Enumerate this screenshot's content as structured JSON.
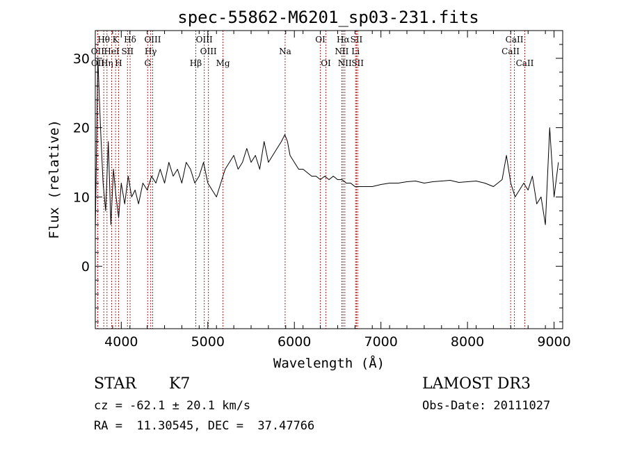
{
  "chart_data": {
    "type": "line",
    "title": "spec-55862-M6201_sp03-231.fits",
    "xlabel": "Wavelength (Å)",
    "ylabel": "Flux (relative)",
    "xlim": [
      3700,
      9100
    ],
    "ylim": [
      -9,
      34
    ],
    "xticks": [
      4000,
      5000,
      6000,
      7000,
      8000,
      9000
    ],
    "yticks": [
      0,
      10,
      20,
      30
    ],
    "series": [
      {
        "name": "spectrum",
        "x": [
          3700,
          3730,
          3760,
          3790,
          3820,
          3850,
          3880,
          3910,
          3940,
          3970,
          4000,
          4040,
          4080,
          4120,
          4160,
          4200,
          4250,
          4300,
          4350,
          4400,
          4450,
          4500,
          4550,
          4600,
          4650,
          4700,
          4750,
          4800,
          4850,
          4900,
          4950,
          5000,
          5050,
          5100,
          5150,
          5200,
          5250,
          5300,
          5350,
          5400,
          5450,
          5500,
          5550,
          5600,
          5650,
          5700,
          5750,
          5800,
          5850,
          5890,
          5920,
          5950,
          6000,
          6050,
          6100,
          6150,
          6200,
          6250,
          6300,
          6350,
          6400,
          6450,
          6500,
          6550,
          6600,
          6650,
          6700,
          6750,
          6800,
          6900,
          7000,
          7100,
          7200,
          7300,
          7400,
          7500,
          7600,
          7700,
          7800,
          7900,
          8000,
          8100,
          8200,
          8300,
          8400,
          8450,
          8500,
          8550,
          8600,
          8650,
          8700,
          8750,
          8800,
          8850,
          8900,
          8950,
          9000,
          9050
        ],
        "y": [
          5,
          30,
          20,
          12,
          8,
          18,
          6,
          14,
          10,
          7,
          12,
          9,
          13,
          10,
          11,
          9,
          12,
          11,
          13,
          12,
          14,
          12,
          15,
          13,
          14,
          12,
          15,
          14,
          12,
          13,
          15,
          12,
          11,
          10,
          12,
          14,
          15,
          16,
          14,
          15,
          17,
          15,
          16,
          14,
          18,
          15,
          16,
          17,
          18,
          19,
          18,
          16,
          15,
          14,
          14,
          13.5,
          13,
          13,
          12.5,
          13,
          12.5,
          13,
          12.5,
          12.5,
          12,
          12,
          11.5,
          11.5,
          11.5,
          11.5,
          11.8,
          12,
          12,
          12.2,
          12.3,
          12,
          12.2,
          12.3,
          12.4,
          12.1,
          12.2,
          12.3,
          12,
          11.5,
          12.5,
          16,
          12,
          10,
          11,
          12,
          11,
          13,
          9,
          10,
          6,
          20,
          10,
          15
        ]
      }
    ],
    "spectral_lines": [
      {
        "label": "Hθ",
        "x": 3798,
        "row": 0
      },
      {
        "label": "K",
        "x": 3934,
        "row": 0
      },
      {
        "label": "Hδ",
        "x": 4102,
        "row": 0
      },
      {
        "label": "OIII",
        "x": 4363,
        "row": 0
      },
      {
        "label": "OIII",
        "x": 4959,
        "row": 0
      },
      {
        "label": "OI",
        "x": 6300,
        "row": 0
      },
      {
        "label": "Hα",
        "x": 6563,
        "row": 0
      },
      {
        "label": "SII",
        "x": 6717,
        "row": 0
      },
      {
        "label": "CaII",
        "x": 8542,
        "row": 0
      },
      {
        "label": "OII",
        "x": 3727,
        "row": 1
      },
      {
        "label": "HeI",
        "x": 3889,
        "row": 1
      },
      {
        "label": "SII",
        "x": 4072,
        "row": 1
      },
      {
        "label": "Hγ",
        "x": 4340,
        "row": 1
      },
      {
        "label": "OIII",
        "x": 5007,
        "row": 1
      },
      {
        "label": "Na",
        "x": 5893,
        "row": 1
      },
      {
        "label": "NII",
        "x": 6548,
        "row": 1
      },
      {
        "label": "Li",
        "x": 6707,
        "row": 1
      },
      {
        "label": "CaII",
        "x": 8498,
        "row": 1
      },
      {
        "label": "OII",
        "x": 3729,
        "row": 2
      },
      {
        "label": "Hη",
        "x": 3835,
        "row": 2
      },
      {
        "label": "H",
        "x": 3969,
        "row": 2
      },
      {
        "label": "G",
        "x": 4305,
        "row": 2
      },
      {
        "label": "Hβ",
        "x": 4861,
        "row": 2
      },
      {
        "label": "Mg",
        "x": 5175,
        "row": 2
      },
      {
        "label": "OI",
        "x": 6364,
        "row": 2
      },
      {
        "label": "NII",
        "x": 6583,
        "row": 2
      },
      {
        "label": "SII",
        "x": 6731,
        "row": 2
      },
      {
        "label": "CaII",
        "x": 8662,
        "row": 2
      }
    ]
  },
  "info": {
    "object_class": "STAR",
    "subclass": "K7",
    "survey": "LAMOST DR3",
    "redshift": "cz = -62.1 ± 20.1 km/s",
    "obs_date": "Obs-Date: 20111027",
    "coordinates": "RA =  11.30545, DEC =  37.47766"
  }
}
